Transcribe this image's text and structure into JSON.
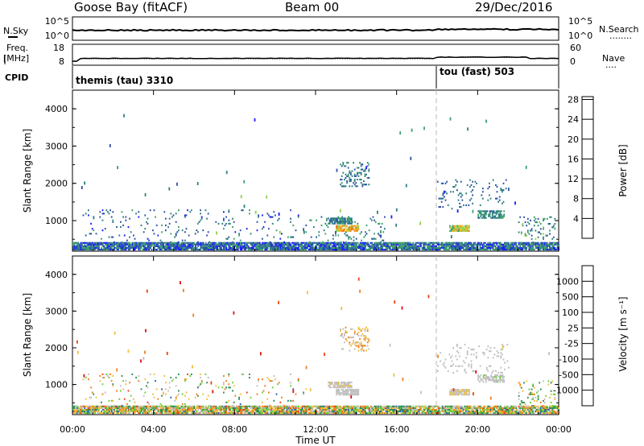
{
  "header": {
    "station": "Goose Bay (fitACF)",
    "beam": "Beam 00",
    "date": "29/Dec/2016"
  },
  "noise_panel": {
    "left_label": "N.Sky",
    "left_ticks": [
      "10^5",
      "10^0"
    ],
    "right_ticks": [
      "10^5",
      "10^0"
    ],
    "right_label": "N.Search",
    "right_legend": "........"
  },
  "freq_panel": {
    "left_label_1": "Freq.",
    "left_label_2": "[MHz]",
    "left_ticks": [
      "18",
      "8"
    ],
    "right_ticks": [
      "60",
      "0"
    ],
    "right_label": "Nave",
    "right_legend": "...."
  },
  "cpid_panel": {
    "label": "CPID",
    "programs": [
      {
        "name": "themis (tau) 3310",
        "start_hour": 0
      },
      {
        "name": "tou (fast) 503",
        "start_hour": 18.0
      }
    ]
  },
  "x_axis": {
    "label": "Time UT",
    "range_hours": [
      0,
      24
    ],
    "ticks": [
      "00:00",
      "04:00",
      "08:00",
      "12:00",
      "16:00",
      "20:00",
      "00:00"
    ]
  },
  "range_axis": {
    "label": "Slant Range [km]",
    "range_km": [
      180,
      4500
    ],
    "ticks": [
      "1000",
      "2000",
      "3000",
      "4000"
    ]
  },
  "power_scale": {
    "label": "Power [dB]",
    "ticks": [
      "4",
      "8",
      "12",
      "16",
      "20",
      "24",
      "28"
    ],
    "colors": [
      "#1a1aff",
      "#2b4fa8",
      "#2e7f7f",
      "#3aa06a",
      "#8fd04a",
      "#f0c020",
      "#f09020",
      "#f06010",
      "#e83010",
      "#e01010"
    ]
  },
  "velocity_scale": {
    "label": "Velocity [m s⁻¹]",
    "ticks": [
      "1000",
      "500",
      "100",
      "25",
      "-25",
      "-100",
      "-500",
      "-1000"
    ],
    "colors": [
      "#1f2fb0",
      "#2c5db8",
      "#2f8f5a",
      "#6ccf3a",
      "#c0c0c0",
      "#f0c040",
      "#f08020",
      "#f04010",
      "#e01010"
    ]
  },
  "chart_data": {
    "type": "heatmap",
    "title": "Goose Bay (fitACF)  Beam 00  29/Dec/2016",
    "xlabel": "Time UT",
    "ylabel": "Slant Range [km]",
    "xlim_hours": [
      0,
      24
    ],
    "ylim_km": [
      180,
      4500
    ],
    "panels": [
      {
        "name": "Power [dB]",
        "clim": [
          0,
          30
        ],
        "scatter_regions": [
          {
            "t_start": 0,
            "t_end": 24,
            "r_min": 200,
            "r_max": 420,
            "density": 0.9,
            "value": 6,
            "spread": 6
          },
          {
            "t_start": 0.5,
            "t_end": 11.5,
            "r_min": 400,
            "r_max": 1300,
            "density": 0.05,
            "value": 6,
            "spread": 4
          },
          {
            "t_start": 11.5,
            "t_end": 15.5,
            "r_min": 400,
            "r_max": 1100,
            "density": 0.1,
            "value": 8,
            "spread": 4
          },
          {
            "t_start": 12.6,
            "t_end": 13.8,
            "r_min": 900,
            "r_max": 1080,
            "density": 0.8,
            "value": 8,
            "spread": 4
          },
          {
            "t_start": 13.0,
            "t_end": 14.1,
            "r_min": 700,
            "r_max": 880,
            "density": 0.9,
            "value": 18,
            "spread": 5
          },
          {
            "t_start": 13.2,
            "t_end": 14.6,
            "r_min": 1900,
            "r_max": 2550,
            "density": 0.25,
            "value": 7,
            "spread": 3
          },
          {
            "t_start": 18.0,
            "t_end": 21.5,
            "r_min": 1300,
            "r_max": 2100,
            "density": 0.09,
            "value": 6,
            "spread": 3
          },
          {
            "t_start": 18.6,
            "t_end": 19.6,
            "r_min": 700,
            "r_max": 850,
            "density": 0.9,
            "value": 14,
            "spread": 5
          },
          {
            "t_start": 20.0,
            "t_end": 21.3,
            "r_min": 1050,
            "r_max": 1250,
            "density": 0.7,
            "value": 8,
            "spread": 3
          },
          {
            "t_start": 22.0,
            "t_end": 23.8,
            "r_min": 350,
            "r_max": 1100,
            "density": 0.15,
            "value": 8,
            "spread": 5
          }
        ]
      },
      {
        "name": "Velocity [m s⁻¹]",
        "clim": [
          -1000,
          1000
        ],
        "scatter_regions": [
          {
            "t_start": 0,
            "t_end": 24,
            "r_min": 200,
            "r_max": 420,
            "density": 0.9,
            "value": 0,
            "spread": 600
          },
          {
            "t_start": 0.5,
            "t_end": 11.5,
            "r_min": 400,
            "r_max": 1300,
            "density": 0.05,
            "value": 0,
            "spread": 600
          },
          {
            "t_start": 12.6,
            "t_end": 13.8,
            "r_min": 900,
            "r_max": 1080,
            "density": 0.8,
            "value": -80,
            "spread": 60
          },
          {
            "t_start": 13.0,
            "t_end": 14.1,
            "r_min": 700,
            "r_max": 880,
            "density": 0.9,
            "value": -60,
            "spread": 50
          },
          {
            "t_start": 13.2,
            "t_end": 14.6,
            "r_min": 1900,
            "r_max": 2550,
            "density": 0.25,
            "value": -200,
            "spread": 300
          },
          {
            "t_start": 18.0,
            "t_end": 21.5,
            "r_min": 1300,
            "r_max": 2100,
            "density": 0.09,
            "value": 0,
            "spread": 40
          },
          {
            "t_start": 18.6,
            "t_end": 19.6,
            "r_min": 700,
            "r_max": 850,
            "density": 0.9,
            "value": -90,
            "spread": 50
          },
          {
            "t_start": 20.0,
            "t_end": 21.3,
            "r_min": 1050,
            "r_max": 1250,
            "density": 0.7,
            "value": 80,
            "spread": 40
          },
          {
            "t_start": 22.0,
            "t_end": 23.8,
            "r_min": 350,
            "r_max": 1100,
            "density": 0.15,
            "value": 0,
            "spread": 500
          }
        ]
      }
    ]
  }
}
